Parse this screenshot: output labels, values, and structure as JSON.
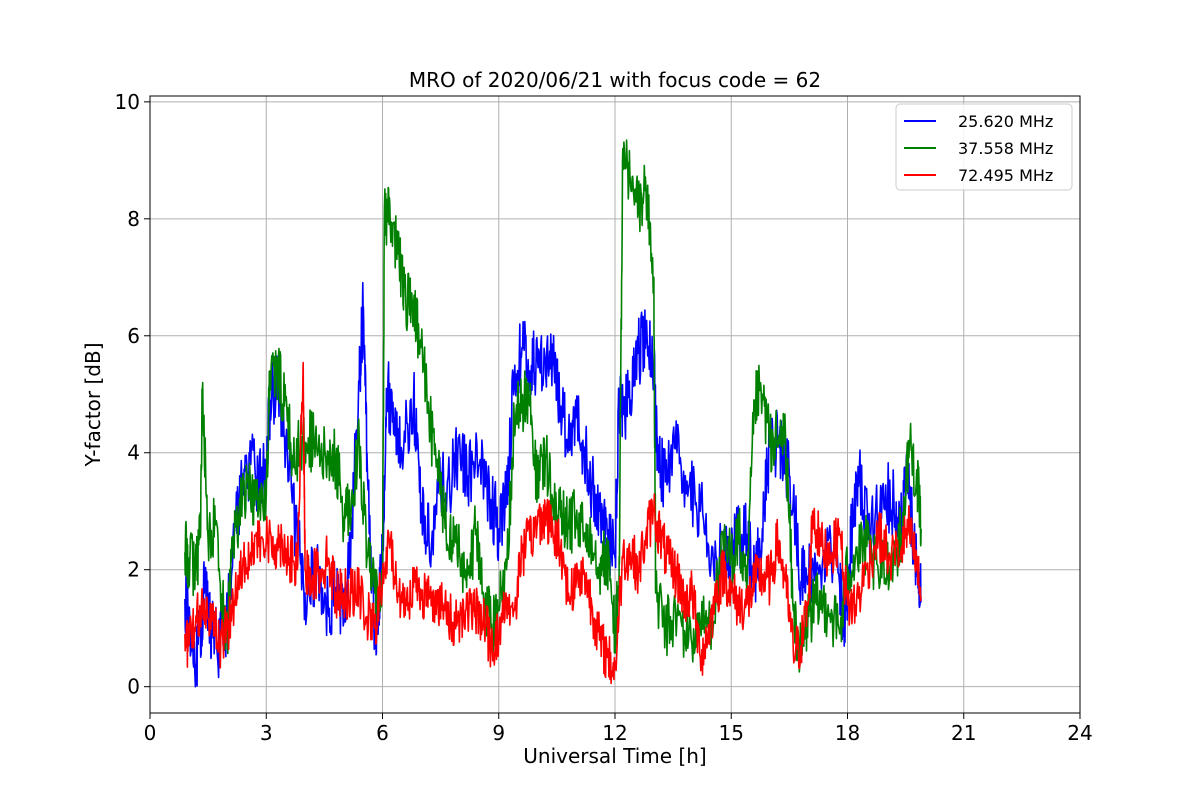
{
  "chart_data": {
    "type": "line",
    "title": "MRO of 2020/06/21 with focus code = 62",
    "xlabel": "Universal Time [h]",
    "ylabel": "Y-factor [dB]",
    "xlim": [
      0,
      24
    ],
    "ylim": [
      -0.45,
      10.1
    ],
    "xticks": [
      0,
      3,
      6,
      9,
      12,
      15,
      18,
      21,
      24
    ],
    "yticks": [
      0,
      2,
      4,
      6,
      8,
      10
    ],
    "grid": true,
    "legend_position": "top-right",
    "series": [
      {
        "name": "25.620 MHz",
        "color": "#0000ff",
        "x": [
          0.9,
          1.0,
          1.2,
          1.3,
          1.4,
          1.5,
          1.6,
          1.8,
          2.0,
          2.2,
          2.4,
          2.6,
          2.8,
          3.0,
          3.1,
          3.3,
          3.5,
          3.8,
          4.0,
          4.3,
          4.6,
          4.8,
          5.0,
          5.2,
          5.4,
          5.5,
          5.6,
          5.8,
          5.9,
          6.0,
          6.1,
          6.3,
          6.5,
          6.8,
          7.0,
          7.2,
          7.5,
          7.8,
          8.0,
          8.2,
          8.5,
          8.8,
          9.0,
          9.2,
          9.4,
          9.6,
          9.8,
          10.0,
          10.2,
          10.4,
          10.6,
          10.8,
          11.0,
          11.2,
          11.4,
          11.6,
          11.8,
          12.0,
          12.1,
          12.2,
          12.4,
          12.6,
          12.8,
          13.0,
          13.1,
          13.3,
          13.6,
          13.9,
          14.2,
          14.5,
          14.8,
          15.0,
          15.2,
          15.4,
          15.6,
          15.8,
          16.0,
          16.2,
          16.4,
          16.6,
          16.8,
          17.0,
          17.2,
          17.5,
          17.8,
          17.9,
          18.0,
          18.1,
          18.3,
          18.6,
          18.9,
          19.2,
          19.4,
          19.5,
          19.6,
          19.8,
          19.9
        ],
        "y": [
          1.5,
          1.3,
          0.4,
          0.9,
          1.6,
          1.3,
          0.9,
          0.7,
          1.2,
          3.0,
          3.4,
          3.8,
          3.5,
          3.7,
          4.9,
          5.2,
          4.0,
          2.5,
          1.6,
          2.0,
          1.3,
          1.7,
          1.1,
          2.7,
          5.2,
          6.5,
          4.0,
          0.8,
          1.5,
          2.2,
          5.1,
          4.6,
          4.0,
          4.9,
          3.1,
          2.5,
          3.4,
          3.6,
          4.1,
          3.6,
          3.8,
          3.2,
          2.7,
          3.3,
          5.3,
          5.8,
          5.4,
          5.6,
          5.6,
          5.5,
          4.8,
          4.3,
          4.6,
          4.1,
          3.4,
          3.0,
          2.6,
          2.2,
          4.9,
          4.8,
          4.9,
          5.7,
          6.0,
          5.5,
          4.0,
          3.5,
          4.0,
          3.4,
          3.0,
          2.4,
          2.3,
          2.2,
          2.6,
          2.6,
          1.9,
          2.7,
          4.1,
          4.2,
          3.9,
          3.2,
          1.8,
          1.9,
          2.0,
          2.5,
          1.7,
          1.2,
          1.6,
          2.6,
          3.6,
          2.6,
          3.4,
          3.1,
          2.7,
          3.5,
          3.2,
          2.0,
          1.5
        ]
      },
      {
        "name": "37.558 MHz",
        "color": "#008000",
        "x": [
          0.9,
          1.0,
          1.2,
          1.3,
          1.35,
          1.5,
          1.7,
          1.9,
          2.0,
          2.1,
          2.3,
          2.5,
          2.7,
          3.0,
          3.1,
          3.3,
          3.5,
          3.7,
          3.9,
          4.1,
          4.3,
          4.6,
          4.8,
          5.0,
          5.2,
          5.4,
          5.6,
          5.8,
          6.0,
          6.05,
          6.2,
          6.4,
          6.6,
          6.8,
          7.0,
          7.2,
          7.4,
          7.6,
          7.8,
          8.0,
          8.2,
          8.4,
          8.6,
          8.8,
          9.0,
          9.2,
          9.4,
          9.6,
          9.8,
          10.0,
          10.2,
          10.4,
          10.6,
          10.8,
          11.0,
          11.2,
          11.4,
          11.6,
          11.8,
          12.0,
          12.1,
          12.2,
          12.4,
          12.6,
          12.8,
          13.0,
          13.05,
          13.3,
          13.6,
          13.9,
          14.2,
          14.5,
          14.8,
          15.0,
          15.2,
          15.4,
          15.6,
          15.8,
          16.0,
          16.2,
          16.4,
          16.6,
          16.8,
          17.0,
          17.2,
          17.5,
          17.8,
          18.0,
          18.2,
          18.5,
          18.8,
          19.1,
          19.4,
          19.6,
          19.8,
          19.9
        ],
        "y": [
          2.3,
          2.2,
          2.0,
          2.8,
          5.0,
          2.5,
          2.8,
          1.2,
          1.0,
          2.2,
          3.0,
          3.5,
          3.1,
          3.3,
          5.4,
          5.3,
          4.9,
          3.8,
          4.2,
          4.2,
          4.1,
          3.8,
          3.9,
          2.9,
          3.2,
          4.2,
          2.2,
          1.6,
          1.8,
          8.2,
          7.9,
          7.4,
          6.6,
          6.5,
          5.8,
          4.6,
          3.8,
          3.0,
          2.5,
          2.2,
          1.9,
          2.6,
          1.6,
          1.0,
          1.3,
          2.0,
          4.6,
          4.9,
          4.8,
          3.4,
          3.9,
          3.2,
          2.9,
          2.7,
          2.9,
          2.6,
          2.6,
          2.1,
          2.2,
          1.0,
          1.5,
          9.2,
          8.6,
          8.2,
          8.5,
          7.0,
          1.6,
          1.0,
          1.2,
          0.8,
          1.0,
          1.2,
          2.3,
          2.2,
          2.6,
          1.5,
          4.9,
          5.0,
          4.2,
          4.2,
          4.3,
          1.3,
          0.5,
          1.2,
          1.4,
          1.4,
          0.9,
          2.0,
          2.2,
          2.4,
          1.9,
          2.1,
          2.6,
          4.2,
          3.5,
          2.7
        ]
      },
      {
        "name": "72.495 MHz",
        "color": "#ff0000",
        "x": [
          0.9,
          1.0,
          1.2,
          1.4,
          1.6,
          1.8,
          2.0,
          2.2,
          2.4,
          2.6,
          2.8,
          3.0,
          3.2,
          3.4,
          3.6,
          3.8,
          3.95,
          4.0,
          4.2,
          4.4,
          4.6,
          4.8,
          5.0,
          5.2,
          5.4,
          5.6,
          5.8,
          6.0,
          6.2,
          6.4,
          6.6,
          6.8,
          7.0,
          7.2,
          7.4,
          7.6,
          7.8,
          8.0,
          8.2,
          8.4,
          8.6,
          8.8,
          9.0,
          9.2,
          9.4,
          9.6,
          9.8,
          10.0,
          10.2,
          10.4,
          10.6,
          10.8,
          11.0,
          11.2,
          11.4,
          11.6,
          11.8,
          12.0,
          12.2,
          12.4,
          12.6,
          12.8,
          13.0,
          13.2,
          13.4,
          13.6,
          13.8,
          14.0,
          14.2,
          14.4,
          14.6,
          14.8,
          15.0,
          15.2,
          15.4,
          15.6,
          15.8,
          16.0,
          16.2,
          16.4,
          16.6,
          16.8,
          17.0,
          17.1,
          17.3,
          17.6,
          17.8,
          18.0,
          18.2,
          18.5,
          18.8,
          19.1,
          19.4,
          19.6,
          19.8,
          19.9
        ],
        "y": [
          0.9,
          0.7,
          1.1,
          1.5,
          1.2,
          0.7,
          1.0,
          1.6,
          2.2,
          2.3,
          2.4,
          2.5,
          2.4,
          2.5,
          2.2,
          2.0,
          5.5,
          2.0,
          1.9,
          2.0,
          2.2,
          1.6,
          1.6,
          1.6,
          1.6,
          1.2,
          1.0,
          1.8,
          2.5,
          1.6,
          1.5,
          1.7,
          1.6,
          1.5,
          1.5,
          1.3,
          1.1,
          1.2,
          1.3,
          1.3,
          1.2,
          0.7,
          0.9,
          1.5,
          1.3,
          2.3,
          2.5,
          2.8,
          3.0,
          2.6,
          2.4,
          1.6,
          1.8,
          2.0,
          1.4,
          0.8,
          0.5,
          0.3,
          2.2,
          2.3,
          2.0,
          2.6,
          3.0,
          2.5,
          2.1,
          1.9,
          1.5,
          1.6,
          0.5,
          0.9,
          1.5,
          2.0,
          1.6,
          1.4,
          1.4,
          1.8,
          1.9,
          1.8,
          2.5,
          1.8,
          0.6,
          0.7,
          1.5,
          3.0,
          2.4,
          2.3,
          2.6,
          1.4,
          1.4,
          2.0,
          2.6,
          2.2,
          2.4,
          2.7,
          2.0,
          1.5
        ]
      }
    ]
  }
}
